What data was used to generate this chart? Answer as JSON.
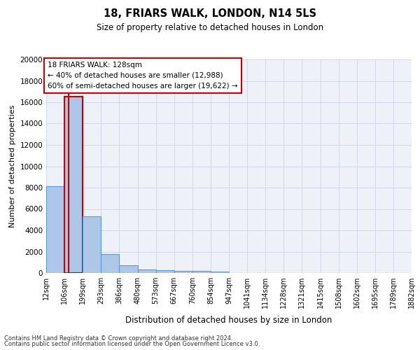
{
  "title": "18, FRIARS WALK, LONDON, N14 5LS",
  "subtitle": "Size of property relative to detached houses in London",
  "xlabel": "Distribution of detached houses by size in London",
  "ylabel": "Number of detached properties",
  "footnote1": "Contains HM Land Registry data © Crown copyright and database right 2024.",
  "footnote2": "Contains public sector information licensed under the Open Government Licence v3.0.",
  "annotation_title": "18 FRIARS WALK: 128sqm",
  "annotation_line1": "← 40% of detached houses are smaller (12,988)",
  "annotation_line2": "60% of semi-detached houses are larger (19,622) →",
  "property_size": 128,
  "property_bin_index": 1,
  "bin_edges": [
    12,
    106,
    199,
    293,
    386,
    480,
    573,
    667,
    760,
    854,
    947,
    1041,
    1134,
    1228,
    1321,
    1415,
    1508,
    1602,
    1695,
    1789,
    1882
  ],
  "bin_counts": [
    8100,
    16500,
    5300,
    1750,
    700,
    320,
    230,
    190,
    175,
    155,
    0,
    0,
    0,
    0,
    0,
    0,
    0,
    0,
    0,
    0
  ],
  "bar_color": "#aec6e8",
  "bar_edge_color": "#5b9bd5",
  "highlight_bar_edge_color": "#cc0000",
  "grid_color": "#d0d8e8",
  "background_color": "#eef2f8",
  "annotation_box_color": "#ffffff",
  "annotation_border_color": "#cc0000",
  "tick_labels": [
    "12sqm",
    "106sqm",
    "199sqm",
    "293sqm",
    "386sqm",
    "480sqm",
    "573sqm",
    "667sqm",
    "760sqm",
    "854sqm",
    "947sqm",
    "1041sqm",
    "1134sqm",
    "1228sqm",
    "1321sqm",
    "1415sqm",
    "1508sqm",
    "1602sqm",
    "1695sqm",
    "1789sqm",
    "1882sqm"
  ],
  "ylim": [
    0,
    20000
  ],
  "yticks": [
    0,
    2000,
    4000,
    6000,
    8000,
    10000,
    12000,
    14000,
    16000,
    18000,
    20000
  ],
  "figwidth": 6.0,
  "figheight": 5.0,
  "dpi": 100
}
